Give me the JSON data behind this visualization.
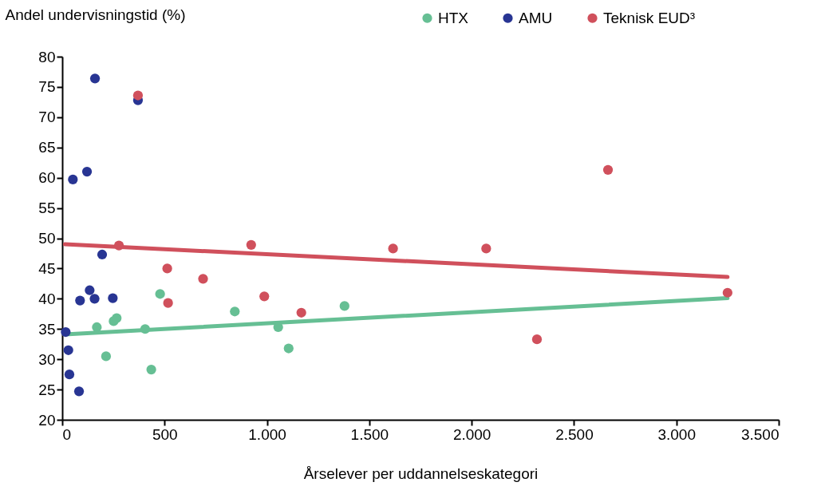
{
  "chart_data": {
    "type": "scatter",
    "xlabel": "Årselever per uddannelseskategori",
    "ylabel": "Andel undervisningstid (%)",
    "xlim": [
      0,
      3500
    ],
    "xticks": [
      0,
      500,
      {
        "value": 1000,
        "label": "1.000"
      },
      {
        "value": 1500,
        "label": "1.500"
      },
      {
        "value": 2000,
        "label": "2.000"
      },
      {
        "value": 2500,
        "label": "2.500"
      },
      {
        "value": 3000,
        "label": "3.000"
      },
      {
        "value": 3500,
        "label": "3.500"
      }
    ],
    "ylim": [
      20,
      80
    ],
    "yticks": [
      20,
      25,
      30,
      35,
      40,
      45,
      50,
      55,
      60,
      65,
      70,
      75,
      80
    ],
    "grid": false,
    "legend": "top right",
    "marker": "circle",
    "series": [
      {
        "name": "HTX",
        "color": "#66bf94",
        "x": [
          169,
          214,
          251,
          266,
          405,
          435,
          478,
          843,
          1055,
          1106,
          1379
        ],
        "values": [
          35.3,
          30.5,
          36.3,
          36.8,
          35.0,
          28.3,
          40.8,
          37.9,
          35.3,
          31.8,
          38.8
        ]
      },
      {
        "name": "AMU",
        "color": "#283593",
        "x": [
          160,
          370,
          52,
          121,
          195,
          134,
          87,
          158,
          247,
          17,
          30,
          35,
          82
        ],
        "values": [
          76.4,
          72.8,
          59.7,
          61.0,
          47.3,
          41.4,
          39.7,
          40.0,
          40.1,
          34.5,
          31.5,
          27.5,
          24.7
        ]
      },
      {
        "name": "Teknisk EUD³",
        "color": "#d0505c",
        "x": [
          370,
          277,
          513,
          517,
          688,
          923,
          987,
          1168,
          1616,
          2071,
          2319,
          2666,
          3250
        ],
        "values": [
          73.6,
          48.8,
          45.0,
          39.3,
          43.3,
          48.9,
          40.4,
          37.7,
          48.3,
          48.3,
          33.3,
          61.3,
          41.0
        ]
      },
      {
        "type": "line",
        "color": "#66bf94",
        "x": [
          13,
          3250
        ],
        "values": [
          34.1,
          40.1
        ],
        "marker": "none"
      },
      {
        "type": "line",
        "color": "#d0505c",
        "x": [
          13,
          3250
        ],
        "values": [
          49.0,
          43.6
        ],
        "marker": "none"
      }
    ]
  }
}
